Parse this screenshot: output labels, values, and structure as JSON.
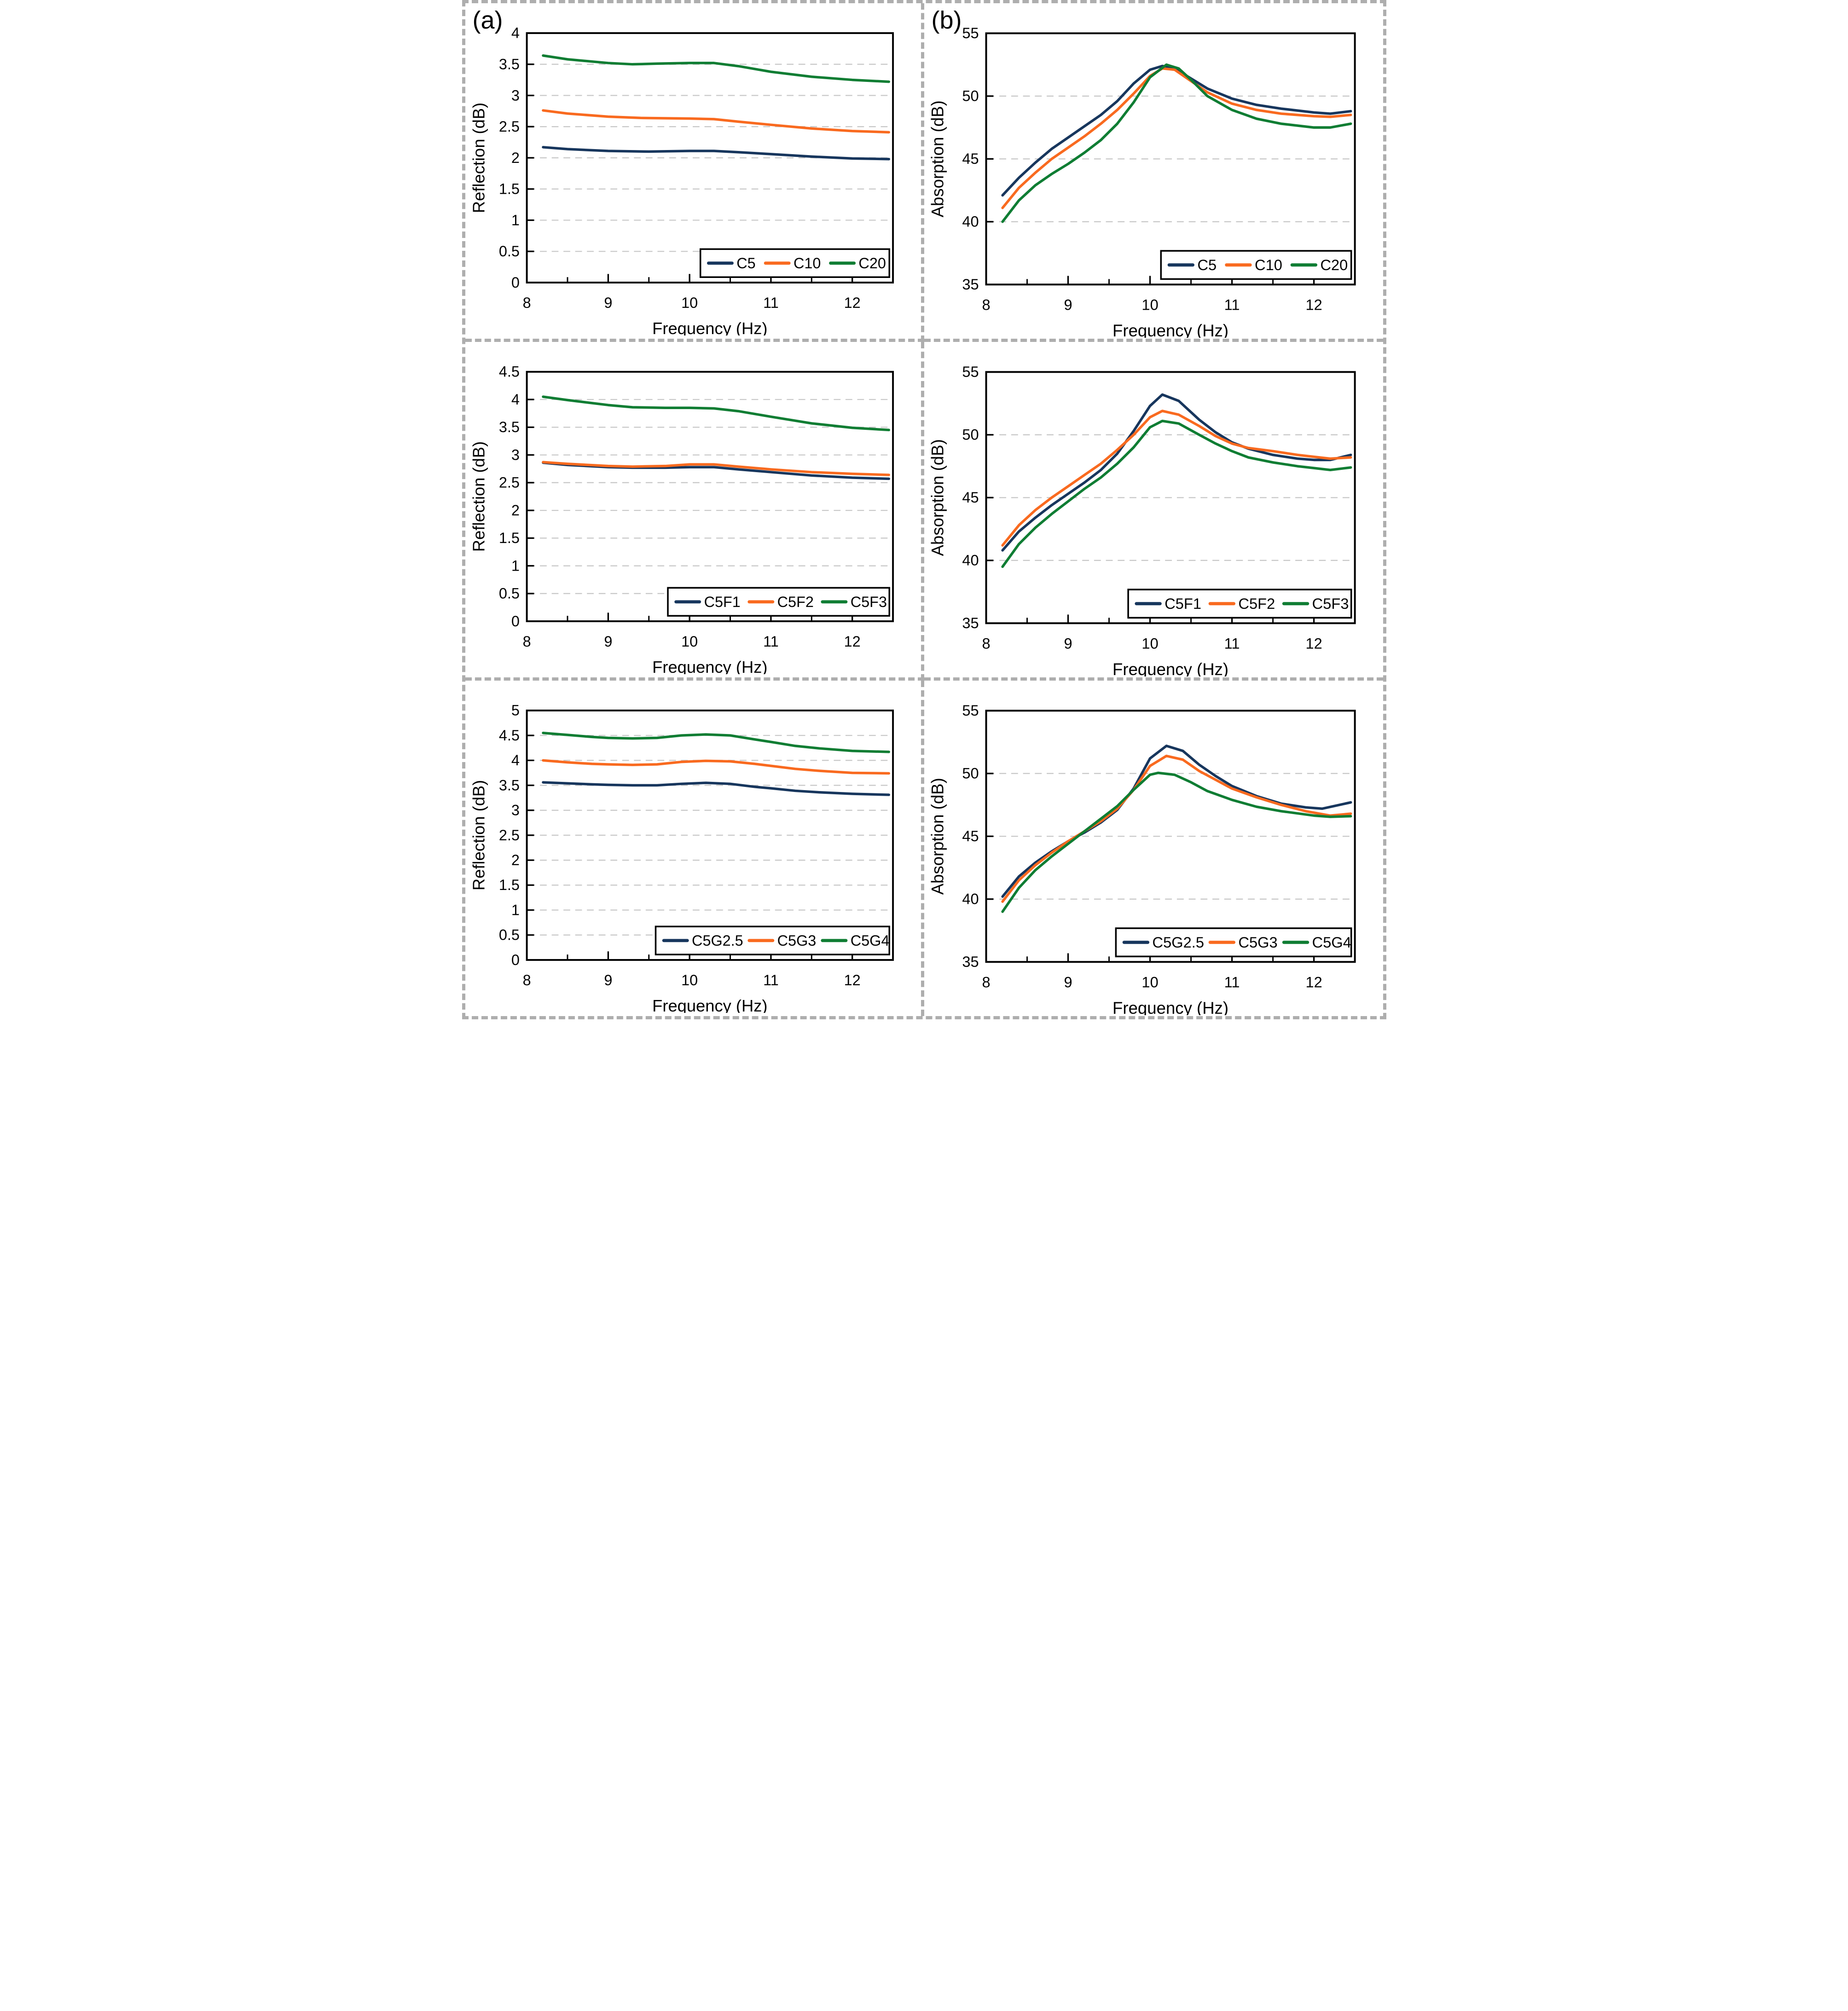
{
  "panels": [
    {
      "label": "(a)"
    },
    {
      "label": "(b)"
    }
  ],
  "colors": {
    "navy": "#17365d",
    "orange": "#f96a1f",
    "green": "#0f7d33",
    "grid": "#c9c9c9",
    "axis": "#000000",
    "divider": "#aeaeae"
  },
  "chart_data": [
    {
      "type": "line",
      "panel": "a",
      "row": 1,
      "xlabel": "Frequency (Hz)",
      "ylabel": "Reflection (dB)",
      "xlim": [
        8,
        12.5
      ],
      "ylim": [
        0,
        4
      ],
      "xticks": [
        8,
        9,
        10,
        11,
        12
      ],
      "xminor": [
        8.5,
        9.5,
        10.5,
        11.5
      ],
      "yticks": [
        0,
        0.5,
        1,
        1.5,
        2,
        2.5,
        3,
        3.5,
        4
      ],
      "grid_y": [
        0.5,
        1,
        1.5,
        2,
        2.5,
        3,
        3.5
      ],
      "grid": true,
      "legend_position": "bottom-right",
      "series": [
        {
          "name": "C5",
          "color": "navy",
          "x": [
            8.2,
            8.5,
            9,
            9.5,
            10,
            10.3,
            10.6,
            11,
            11.5,
            12,
            12.45
          ],
          "y": [
            2.17,
            2.14,
            2.11,
            2.1,
            2.11,
            2.11,
            2.09,
            2.06,
            2.02,
            1.99,
            1.98
          ]
        },
        {
          "name": "C10",
          "color": "orange",
          "x": [
            8.2,
            8.5,
            9,
            9.4,
            10,
            10.3,
            10.6,
            11,
            11.5,
            12,
            12.45
          ],
          "y": [
            2.76,
            2.71,
            2.66,
            2.64,
            2.63,
            2.62,
            2.58,
            2.53,
            2.47,
            2.43,
            2.41
          ]
        },
        {
          "name": "C20",
          "color": "green",
          "x": [
            8.2,
            8.5,
            9,
            9.3,
            9.6,
            10,
            10.3,
            10.6,
            11,
            11.5,
            12,
            12.45
          ],
          "y": [
            3.64,
            3.58,
            3.52,
            3.5,
            3.51,
            3.52,
            3.52,
            3.47,
            3.38,
            3.3,
            3.25,
            3.22
          ]
        }
      ]
    },
    {
      "type": "line",
      "panel": "b",
      "row": 1,
      "xlabel": "Frequency (Hz)",
      "ylabel": "Absorption (dB)",
      "xlim": [
        8,
        12.5
      ],
      "ylim": [
        35,
        55
      ],
      "xticks": [
        8,
        9,
        10,
        11,
        12
      ],
      "xminor": [
        8.5,
        9.5,
        10.5,
        11.5
      ],
      "yticks": [
        35,
        40,
        45,
        50,
        55
      ],
      "grid_y": [
        40,
        45,
        50
      ],
      "grid": true,
      "legend_position": "bottom-right",
      "series": [
        {
          "name": "C5",
          "color": "navy",
          "x": [
            8.2,
            8.4,
            8.6,
            8.8,
            9,
            9.2,
            9.4,
            9.6,
            9.8,
            10,
            10.15,
            10.3,
            10.5,
            10.7,
            11,
            11.3,
            11.6,
            12,
            12.2,
            12.45
          ],
          "y": [
            42.1,
            43.5,
            44.7,
            45.8,
            46.7,
            47.6,
            48.5,
            49.6,
            51.0,
            52.1,
            52.4,
            52.2,
            51.4,
            50.6,
            49.8,
            49.3,
            49.0,
            48.7,
            48.6,
            48.8
          ]
        },
        {
          "name": "C10",
          "color": "orange",
          "x": [
            8.2,
            8.4,
            8.6,
            8.8,
            9,
            9.2,
            9.4,
            9.6,
            9.8,
            10,
            10.15,
            10.3,
            10.5,
            10.7,
            11,
            11.3,
            11.6,
            12,
            12.2,
            12.45
          ],
          "y": [
            41.1,
            42.7,
            43.9,
            45.0,
            45.9,
            46.8,
            47.8,
            48.9,
            50.2,
            51.6,
            52.2,
            52.1,
            51.2,
            50.3,
            49.4,
            48.9,
            48.6,
            48.4,
            48.35,
            48.5
          ]
        },
        {
          "name": "C20",
          "color": "green",
          "x": [
            8.2,
            8.4,
            8.6,
            8.8,
            9,
            9.2,
            9.4,
            9.6,
            9.8,
            10,
            10.2,
            10.35,
            10.5,
            10.7,
            11,
            11.3,
            11.6,
            12,
            12.2,
            12.45
          ],
          "y": [
            40.0,
            41.7,
            42.9,
            43.8,
            44.6,
            45.5,
            46.5,
            47.8,
            49.5,
            51.5,
            52.5,
            52.2,
            51.3,
            50.0,
            48.9,
            48.2,
            47.8,
            47.5,
            47.5,
            47.8
          ]
        }
      ]
    },
    {
      "type": "line",
      "panel": "a",
      "row": 2,
      "xlabel": "Frequency (Hz)",
      "ylabel": "Reflection (dB)",
      "xlim": [
        8,
        12.5
      ],
      "ylim": [
        0,
        4.5
      ],
      "xticks": [
        8,
        9,
        10,
        11,
        12
      ],
      "xminor": [
        8.5,
        9.5,
        10.5,
        11.5
      ],
      "yticks": [
        0,
        0.5,
        1,
        1.5,
        2,
        2.5,
        3,
        3.5,
        4,
        4.5
      ],
      "grid_y": [
        0.5,
        1,
        1.5,
        2,
        2.5,
        3,
        3.5,
        4
      ],
      "grid": true,
      "legend_position": "bottom-right",
      "series": [
        {
          "name": "C5F1",
          "color": "navy",
          "x": [
            8.2,
            8.5,
            9,
            9.3,
            9.7,
            10,
            10.3,
            10.6,
            11,
            11.5,
            12,
            12.45
          ],
          "y": [
            2.86,
            2.82,
            2.78,
            2.77,
            2.77,
            2.78,
            2.78,
            2.74,
            2.69,
            2.63,
            2.59,
            2.57
          ]
        },
        {
          "name": "C5F2",
          "color": "orange",
          "x": [
            8.2,
            8.5,
            9,
            9.3,
            9.7,
            10,
            10.3,
            10.6,
            11,
            11.5,
            12,
            12.45
          ],
          "y": [
            2.87,
            2.84,
            2.8,
            2.79,
            2.8,
            2.83,
            2.83,
            2.79,
            2.74,
            2.69,
            2.66,
            2.64
          ]
        },
        {
          "name": "C5F3",
          "color": "green",
          "x": [
            8.2,
            8.5,
            9,
            9.3,
            9.7,
            10,
            10.3,
            10.6,
            11,
            11.5,
            12,
            12.45
          ],
          "y": [
            4.05,
            3.99,
            3.9,
            3.86,
            3.85,
            3.85,
            3.84,
            3.79,
            3.69,
            3.57,
            3.49,
            3.45
          ]
        }
      ]
    },
    {
      "type": "line",
      "panel": "b",
      "row": 2,
      "xlabel": "Frequency (Hz)",
      "ylabel": "Absorption (dB)",
      "xlim": [
        8,
        12.5
      ],
      "ylim": [
        35,
        55
      ],
      "xticks": [
        8,
        9,
        10,
        11,
        12
      ],
      "xminor": [
        8.5,
        9.5,
        10.5,
        11.5
      ],
      "yticks": [
        35,
        40,
        45,
        50,
        55
      ],
      "grid_y": [
        40,
        45,
        50
      ],
      "grid": true,
      "legend_position": "bottom-right",
      "series": [
        {
          "name": "C5F1",
          "color": "navy",
          "x": [
            8.2,
            8.4,
            8.6,
            8.8,
            9,
            9.2,
            9.4,
            9.6,
            9.8,
            10,
            10.15,
            10.35,
            10.6,
            10.8,
            11,
            11.2,
            11.5,
            11.8,
            12,
            12.2,
            12.45
          ],
          "y": [
            40.8,
            42.3,
            43.4,
            44.4,
            45.3,
            46.2,
            47.2,
            48.5,
            50.3,
            52.3,
            53.2,
            52.7,
            51.2,
            50.2,
            49.4,
            48.9,
            48.4,
            48.1,
            48.0,
            48.0,
            48.4
          ]
        },
        {
          "name": "C5F2",
          "color": "orange",
          "x": [
            8.2,
            8.4,
            8.6,
            8.8,
            9,
            9.2,
            9.4,
            9.6,
            9.8,
            10,
            10.15,
            10.35,
            10.6,
            10.8,
            11,
            11.2,
            11.5,
            11.8,
            12,
            12.2,
            12.45
          ],
          "y": [
            41.2,
            42.8,
            44.0,
            45.0,
            45.9,
            46.8,
            47.7,
            48.8,
            50.0,
            51.4,
            51.9,
            51.6,
            50.7,
            49.9,
            49.3,
            48.95,
            48.7,
            48.4,
            48.25,
            48.1,
            48.2
          ]
        },
        {
          "name": "C5F3",
          "color": "green",
          "x": [
            8.2,
            8.4,
            8.6,
            8.8,
            9,
            9.2,
            9.4,
            9.6,
            9.8,
            10,
            10.15,
            10.35,
            10.6,
            10.8,
            11,
            11.2,
            11.5,
            11.8,
            12,
            12.2,
            12.45
          ],
          "y": [
            39.5,
            41.3,
            42.6,
            43.7,
            44.7,
            45.7,
            46.6,
            47.7,
            49.0,
            50.6,
            51.1,
            50.9,
            50.0,
            49.3,
            48.7,
            48.2,
            47.8,
            47.5,
            47.35,
            47.2,
            47.4
          ]
        }
      ]
    },
    {
      "type": "line",
      "panel": "a",
      "row": 3,
      "xlabel": "Frequency (Hz)",
      "ylabel": "Reflection (dB)",
      "xlim": [
        8,
        12.5
      ],
      "ylim": [
        0,
        5
      ],
      "xticks": [
        8,
        9,
        10,
        11,
        12
      ],
      "xminor": [
        8.5,
        9.5,
        10.5,
        11.5
      ],
      "yticks": [
        0,
        0.5,
        1,
        1.5,
        2,
        2.5,
        3,
        3.5,
        4,
        4.5,
        5
      ],
      "grid_y": [
        0.5,
        1,
        1.5,
        2,
        2.5,
        3,
        3.5,
        4,
        4.5
      ],
      "grid": true,
      "legend_position": "bottom-right",
      "series": [
        {
          "name": "C5G2.5",
          "color": "navy",
          "x": [
            8.2,
            8.5,
            8.8,
            9,
            9.3,
            9.6,
            9.9,
            10.2,
            10.5,
            10.8,
            11,
            11.3,
            11.6,
            12,
            12.45
          ],
          "y": [
            3.56,
            3.54,
            3.52,
            3.51,
            3.5,
            3.5,
            3.53,
            3.55,
            3.53,
            3.47,
            3.44,
            3.39,
            3.36,
            3.33,
            3.31
          ]
        },
        {
          "name": "C5G3",
          "color": "orange",
          "x": [
            8.2,
            8.5,
            8.8,
            9,
            9.3,
            9.6,
            9.9,
            10.2,
            10.5,
            10.8,
            11,
            11.3,
            11.6,
            12,
            12.45
          ],
          "y": [
            4.0,
            3.96,
            3.93,
            3.92,
            3.91,
            3.92,
            3.97,
            3.99,
            3.98,
            3.93,
            3.89,
            3.83,
            3.79,
            3.75,
            3.74
          ]
        },
        {
          "name": "C5G4",
          "color": "green",
          "x": [
            8.2,
            8.5,
            8.8,
            9,
            9.3,
            9.6,
            9.9,
            10.2,
            10.5,
            10.8,
            11,
            11.3,
            11.6,
            12,
            12.45
          ],
          "y": [
            4.55,
            4.51,
            4.47,
            4.45,
            4.44,
            4.45,
            4.5,
            4.52,
            4.5,
            4.42,
            4.37,
            4.29,
            4.24,
            4.19,
            4.17
          ]
        }
      ]
    },
    {
      "type": "line",
      "panel": "b",
      "row": 3,
      "xlabel": "Frequency (Hz)",
      "ylabel": "Absorption (dB)",
      "xlim": [
        8,
        12.5
      ],
      "ylim": [
        35,
        55
      ],
      "xticks": [
        8,
        9,
        10,
        11,
        12
      ],
      "xminor": [
        8.5,
        9.5,
        10.5,
        11.5
      ],
      "yticks": [
        35,
        40,
        45,
        50,
        55
      ],
      "grid_y": [
        40,
        45,
        50
      ],
      "grid": true,
      "legend_position": "bottom-right",
      "series": [
        {
          "name": "C5G2.5",
          "color": "navy",
          "x": [
            8.2,
            8.4,
            8.6,
            8.8,
            9,
            9.2,
            9.4,
            9.6,
            9.8,
            10,
            10.2,
            10.4,
            10.6,
            10.8,
            11,
            11.3,
            11.6,
            11.9,
            12.1,
            12.45
          ],
          "y": [
            40.2,
            41.8,
            42.9,
            43.8,
            44.6,
            45.3,
            46.1,
            47.1,
            48.8,
            51.2,
            52.2,
            51.8,
            50.7,
            49.8,
            49.0,
            48.2,
            47.6,
            47.3,
            47.2,
            47.7
          ]
        },
        {
          "name": "C5G3",
          "color": "orange",
          "x": [
            8.2,
            8.4,
            8.6,
            8.8,
            9,
            9.2,
            9.4,
            9.6,
            9.8,
            10,
            10.2,
            10.4,
            10.6,
            10.8,
            11,
            11.3,
            11.6,
            11.9,
            12.2,
            12.45
          ],
          "y": [
            39.8,
            41.5,
            42.7,
            43.7,
            44.6,
            45.4,
            46.2,
            47.2,
            48.7,
            50.6,
            51.4,
            51.1,
            50.2,
            49.5,
            48.8,
            48.1,
            47.5,
            47.0,
            46.65,
            46.8
          ]
        },
        {
          "name": "C5G4",
          "color": "green",
          "x": [
            8.2,
            8.4,
            8.6,
            8.8,
            9,
            9.2,
            9.4,
            9.6,
            9.8,
            10,
            10.1,
            10.3,
            10.5,
            10.7,
            11,
            11.3,
            11.6,
            12,
            12.2,
            12.45
          ],
          "y": [
            39.0,
            40.9,
            42.3,
            43.4,
            44.4,
            45.4,
            46.4,
            47.4,
            48.7,
            49.9,
            50.05,
            49.9,
            49.3,
            48.6,
            47.9,
            47.35,
            47.0,
            46.65,
            46.55,
            46.6
          ]
        }
      ]
    }
  ]
}
